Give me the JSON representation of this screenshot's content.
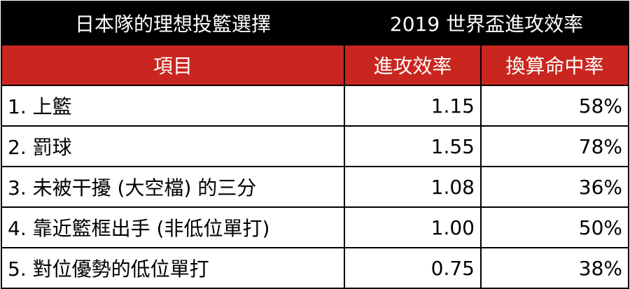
{
  "title": {
    "left": "日本隊的理想投籃選擇",
    "right": "2019 世界盃進攻效率"
  },
  "columns": {
    "item": "項目",
    "efficiency": "進攻效率",
    "conversion": "換算命中率"
  },
  "colors": {
    "title_bg": "#000000",
    "header_bg": "#c8261f",
    "text_light": "#ffffff",
    "text_dark": "#000000"
  },
  "rows": [
    {
      "item": "1. 上籃",
      "efficiency": "1.15",
      "conversion": "58%"
    },
    {
      "item": "2. 罰球",
      "efficiency": "1.55",
      "conversion": "78%"
    },
    {
      "item": "3. 未被干擾 (大空檔) 的三分",
      "efficiency": "1.08",
      "conversion": "36%"
    },
    {
      "item": "4. 靠近籃框出手 (非低位單打)",
      "efficiency": "1.00",
      "conversion": "50%"
    },
    {
      "item": "5. 對位優勢的低位單打",
      "efficiency": "0.75",
      "conversion": "38%"
    }
  ]
}
